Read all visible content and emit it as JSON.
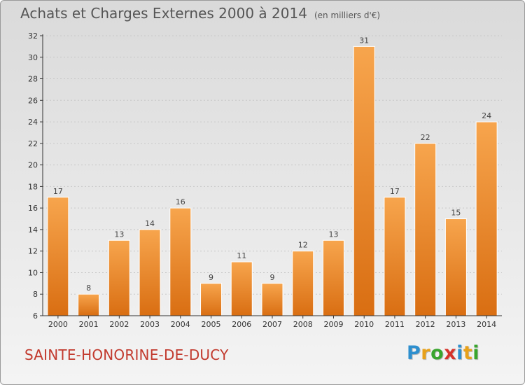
{
  "title": "Achats et Charges Externes 2000 à 2014",
  "unit": "(en milliers d'€)",
  "town": "SAINTE-HONORINE-DE-DUCY",
  "logo": {
    "letters": [
      "P",
      "r",
      "o",
      "x",
      "i",
      "t",
      "i"
    ],
    "colors": [
      "#2e8fce",
      "#e8a11a",
      "#39a52e",
      "#d6332a",
      "#2e8fce",
      "#e8a11a",
      "#39a52e"
    ]
  },
  "colors": {
    "bar_light": "#f7a54d",
    "bar_dark": "#d96e12",
    "axis": "#333333",
    "grid": "#c8c8c8"
  },
  "chart_data": {
    "type": "bar",
    "categories": [
      "2000",
      "2001",
      "2002",
      "2003",
      "2004",
      "2005",
      "2006",
      "2007",
      "2008",
      "2009",
      "2010",
      "2011",
      "2012",
      "2013",
      "2014"
    ],
    "values": [
      17,
      8,
      13,
      14,
      16,
      9,
      11,
      9,
      12,
      13,
      31,
      17,
      22,
      15,
      24
    ],
    "data_labels": [
      "17",
      "8",
      "13",
      "14",
      "16",
      "9",
      "11",
      "9",
      "12",
      "13",
      "31",
      "17",
      "22",
      "15",
      "24"
    ],
    "ylim": [
      6,
      32
    ],
    "yticks": [
      6,
      8,
      10,
      12,
      14,
      16,
      18,
      20,
      22,
      24,
      26,
      28,
      30,
      32
    ],
    "ytick_labels": [
      "6",
      "8",
      "10",
      "12",
      "14",
      "16",
      "18",
      "20",
      "22",
      "24",
      "26",
      "28",
      "30",
      "32"
    ],
    "grid": true,
    "xlabel": "",
    "ylabel": ""
  }
}
